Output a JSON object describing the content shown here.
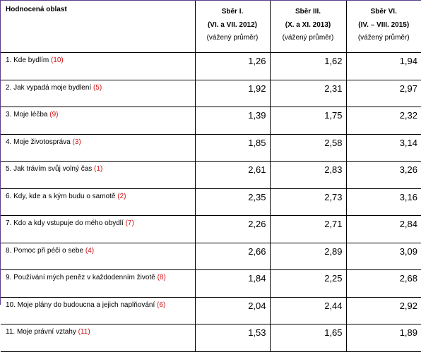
{
  "header": {
    "area": "Hodnocená oblast",
    "columns": [
      {
        "title": "Sběr I.",
        "period": "(VI. a VII. 2012)",
        "note": "(vážený průměr)"
      },
      {
        "title": "Sběr III.",
        "period": "(X. a XI. 2013)",
        "note": "(vážený průměr)"
      },
      {
        "title": "Sběr VI.",
        "period": "(IV. – VIII. 2015)",
        "note": "(vážený průměr)"
      }
    ]
  },
  "rows": [
    {
      "label": "1. Kde bydlím",
      "code": "(10)",
      "values": [
        "1,26",
        "1,62",
        "1,94"
      ]
    },
    {
      "label": "2. Jak vypadá moje bydlení",
      "code": "(5)",
      "values": [
        "1,92",
        "2,31",
        "2,97"
      ]
    },
    {
      "label": "3. Moje léčba",
      "code": "(9)",
      "values": [
        "1,39",
        "1,75",
        "2,32"
      ]
    },
    {
      "label": "4. Moje životospráva",
      "code": "(3)",
      "values": [
        "1,85",
        "2,58",
        "3,14"
      ]
    },
    {
      "label": "5. Jak trávím svůj volný čas",
      "code": "(1)",
      "values": [
        "2,61",
        "2,83",
        "3,26"
      ]
    },
    {
      "label": "6. Kdy, kde a s kým budu o samotě",
      "code": "(2)",
      "values": [
        "2,35",
        "2,73",
        "3,16"
      ]
    },
    {
      "label": "7. Kdo a kdy vstupuje do mého obydlí",
      "code": "(7)",
      "values": [
        "2,26",
        "2,71",
        "2,84"
      ]
    },
    {
      "label": "8. Pomoc při péči o sebe",
      "code": "(4)",
      "values": [
        "2,66",
        "2,89",
        "3,09"
      ]
    },
    {
      "label": "9. Používání mých peněz v každodenním životě",
      "code": "(8)",
      "values": [
        "1,84",
        "2,25",
        "2,68"
      ]
    },
    {
      "label": "10. Moje plány do budoucna a jejich naplňování",
      "code": "(6)",
      "values": [
        "2,04",
        "2,44",
        "2,92"
      ]
    },
    {
      "label": "11. Moje právní vztahy",
      "code": "(11)",
      "values": [
        "1,53",
        "1,65",
        "1,89"
      ]
    }
  ]
}
